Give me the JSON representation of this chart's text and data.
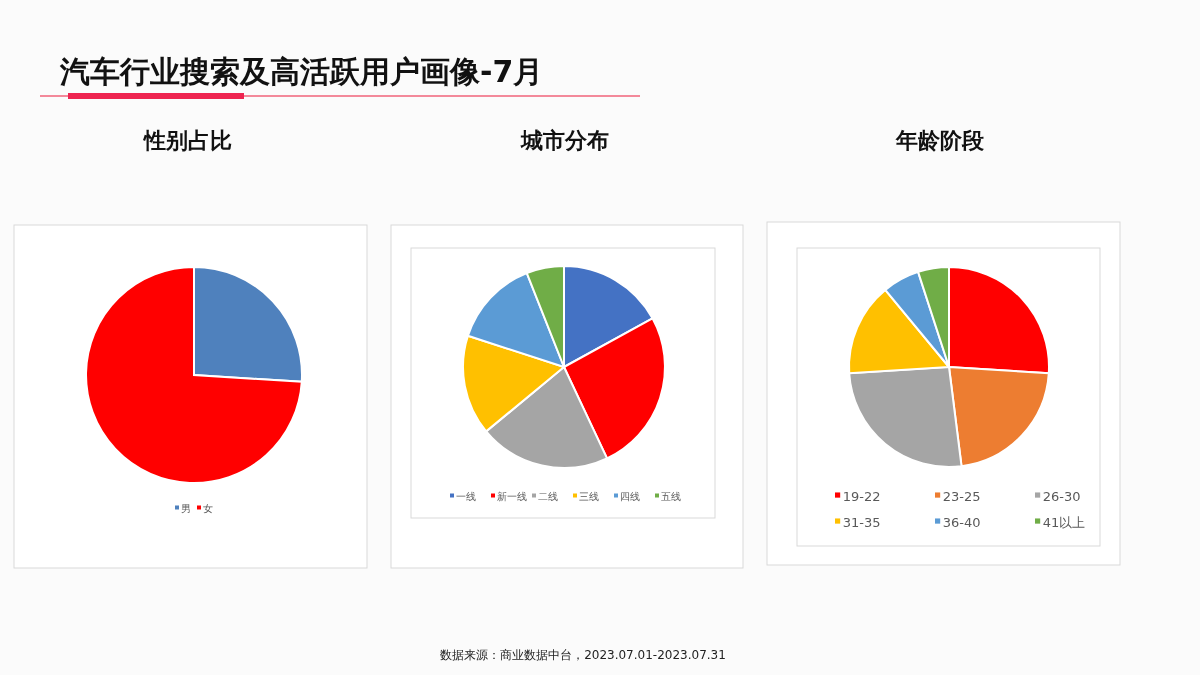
{
  "chart_data": [
    {
      "type": "pie",
      "title": "性别占比",
      "categories": [
        "男",
        "女"
      ],
      "values": [
        26,
        74
      ],
      "colors": [
        "#4f81bd",
        "#ff0000"
      ],
      "legend": "bottom",
      "annotations": [
        "汽车行业搜索及高活跃用户画像-7月"
      ]
    },
    {
      "type": "pie",
      "title": "城市分布",
      "categories": [
        "一线",
        "新一线",
        "二线",
        "三线",
        "四线",
        "五线"
      ],
      "values": [
        17,
        26,
        21,
        16,
        14,
        6
      ],
      "colors": [
        "#4472c4",
        "#ff0000",
        "#a5a5a5",
        "#ffc000",
        "#5b9bd5",
        "#70ad47"
      ],
      "legend": "bottom",
      "annotations": [
        "数据来源：商业数据中台，2023.07.01-2023.07.31"
      ]
    },
    {
      "type": "pie",
      "title": "年龄阶段",
      "categories": [
        "19-22",
        "23-25",
        "26-30",
        "31-35",
        "36-40",
        "41以上"
      ],
      "values": [
        26,
        22,
        26,
        15,
        6,
        5
      ],
      "colors": [
        "#ff0000",
        "#ed7d31",
        "#a5a5a5",
        "#ffc000",
        "#5b9bd5",
        "#70ad47"
      ],
      "legend": "bottom"
    }
  ]
}
